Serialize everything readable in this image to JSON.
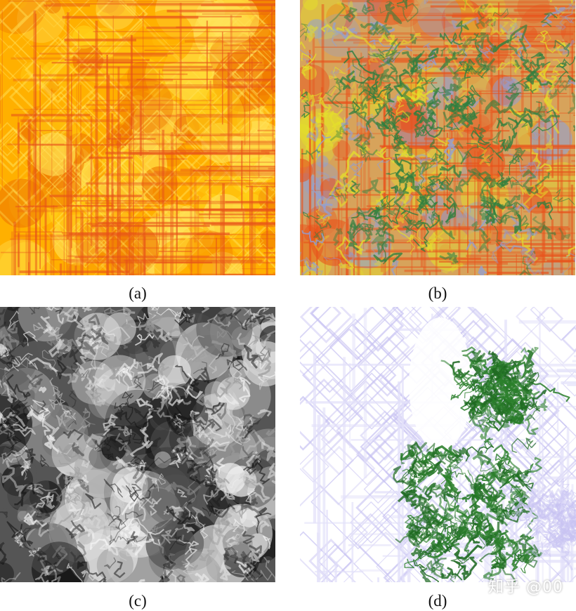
{
  "panels": [
    {
      "id": "a",
      "caption": "(a)",
      "palette": [
        "#ffd21a",
        "#ffb000",
        "#f07a00",
        "#e8531a",
        "#ffe45c"
      ],
      "texture": "orange-yellow-grid"
    },
    {
      "id": "b",
      "caption": "(b)",
      "palette": [
        "#d7a35b",
        "#8f9fd8",
        "#2f7f3f",
        "#e4e02a",
        "#e9531c"
      ],
      "texture": "mixed-green-yellow-blue-grid"
    },
    {
      "id": "c",
      "caption": "(c)",
      "palette": [
        "#101010",
        "#555555",
        "#9a9a9a",
        "#d7d7d7",
        "#f4f4f4"
      ],
      "texture": "grayscale-cloud"
    },
    {
      "id": "d",
      "caption": "(d)",
      "palette": [
        "#ffffff",
        "#e3e1fa",
        "#c8c3f2",
        "#2b7f2b",
        "#1f6a22"
      ],
      "texture": "lavender-grid-green-cluster"
    }
  ],
  "watermark": {
    "text": "知乎 @00"
  }
}
